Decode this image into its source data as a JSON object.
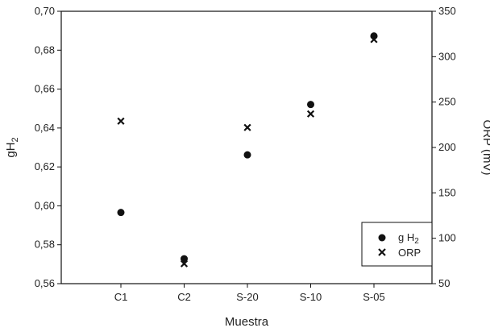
{
  "chart_data": {
    "type": "scatter",
    "categories": [
      "C1",
      "C2",
      "S-20",
      "S-10",
      "S-05"
    ],
    "xlabel": "Muestra",
    "ylabel_left": "gH",
    "ylabel_left_subscript": "2",
    "ylabel_right": "ORP (mV)",
    "ylim_left": [
      0.56,
      0.7
    ],
    "ylim_right": [
      50,
      350
    ],
    "yticks_left": [
      "0,56",
      "0,58",
      "0,60",
      "0,62",
      "0,64",
      "0,66",
      "0,68",
      "0,70"
    ],
    "yticks_right": [
      "50",
      "100",
      "150",
      "200",
      "250",
      "300",
      "350"
    ],
    "grid": false,
    "legend_position": "bottom-right",
    "series": [
      {
        "name": "g H",
        "name_subscript": "2",
        "axis": "left",
        "marker": "circle",
        "color": "#111111",
        "values": [
          0.5966,
          0.5728,
          0.6262,
          0.6521,
          0.6873
        ]
      },
      {
        "name": "ORP",
        "axis": "right",
        "marker": "x",
        "color": "#111111",
        "values": [
          229,
          72,
          222,
          237,
          319
        ]
      }
    ]
  }
}
